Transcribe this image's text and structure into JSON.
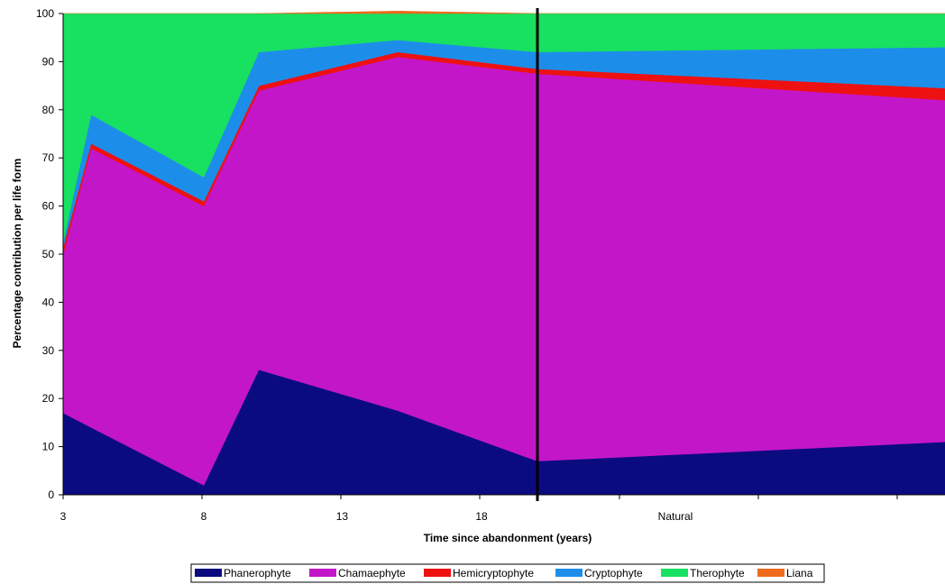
{
  "chart_data": {
    "type": "area",
    "stacked": true,
    "xlabel": "Time since abandonment (years)",
    "ylabel": "Percentage contribution per life form",
    "ylim": [
      0,
      100
    ],
    "yticks": [
      0,
      10,
      20,
      30,
      40,
      50,
      60,
      70,
      80,
      90,
      100
    ],
    "grid": false,
    "legend_position": "bottom",
    "x_categories": [
      "3",
      "4",
      "8",
      "10",
      "15",
      "20",
      "Natural"
    ],
    "x_tick_labels": [
      {
        "label": "3",
        "at": "3"
      },
      {
        "label": "8",
        "at": "8"
      },
      {
        "label": "13",
        "between": [
          "10",
          "15"
        ],
        "fraction": 0.6
      },
      {
        "label": "18",
        "between": [
          "15",
          "20"
        ],
        "fraction": 0.6
      },
      {
        "label": "Natural",
        "at": "Natural"
      }
    ],
    "divider_after": "20",
    "series": [
      {
        "name": "Phanerophyte",
        "color": "#0b0b80",
        "values": [
          17,
          14,
          2,
          26,
          17.5,
          7,
          11
        ]
      },
      {
        "name": "Chamaephyte",
        "color": "#c316c9",
        "values": [
          33,
          58,
          58,
          58,
          73.5,
          80.5,
          71
        ]
      },
      {
        "name": "Hemicryptophyte",
        "color": "#ee1111",
        "values": [
          1.5,
          1,
          1,
          1,
          1,
          1,
          2.5
        ]
      },
      {
        "name": "Cryptophyte",
        "color": "#1c8eea",
        "values": [
          1,
          6,
          5,
          7,
          2.5,
          3.5,
          8.5
        ]
      },
      {
        "name": "Therophyte",
        "color": "#18e060",
        "values": [
          47.5,
          21,
          34,
          8,
          5.5,
          8,
          7
        ]
      },
      {
        "name": "Liana",
        "color": "#ef6b1b",
        "values": [
          0,
          0,
          0,
          0,
          0.5,
          0,
          0
        ]
      }
    ]
  }
}
